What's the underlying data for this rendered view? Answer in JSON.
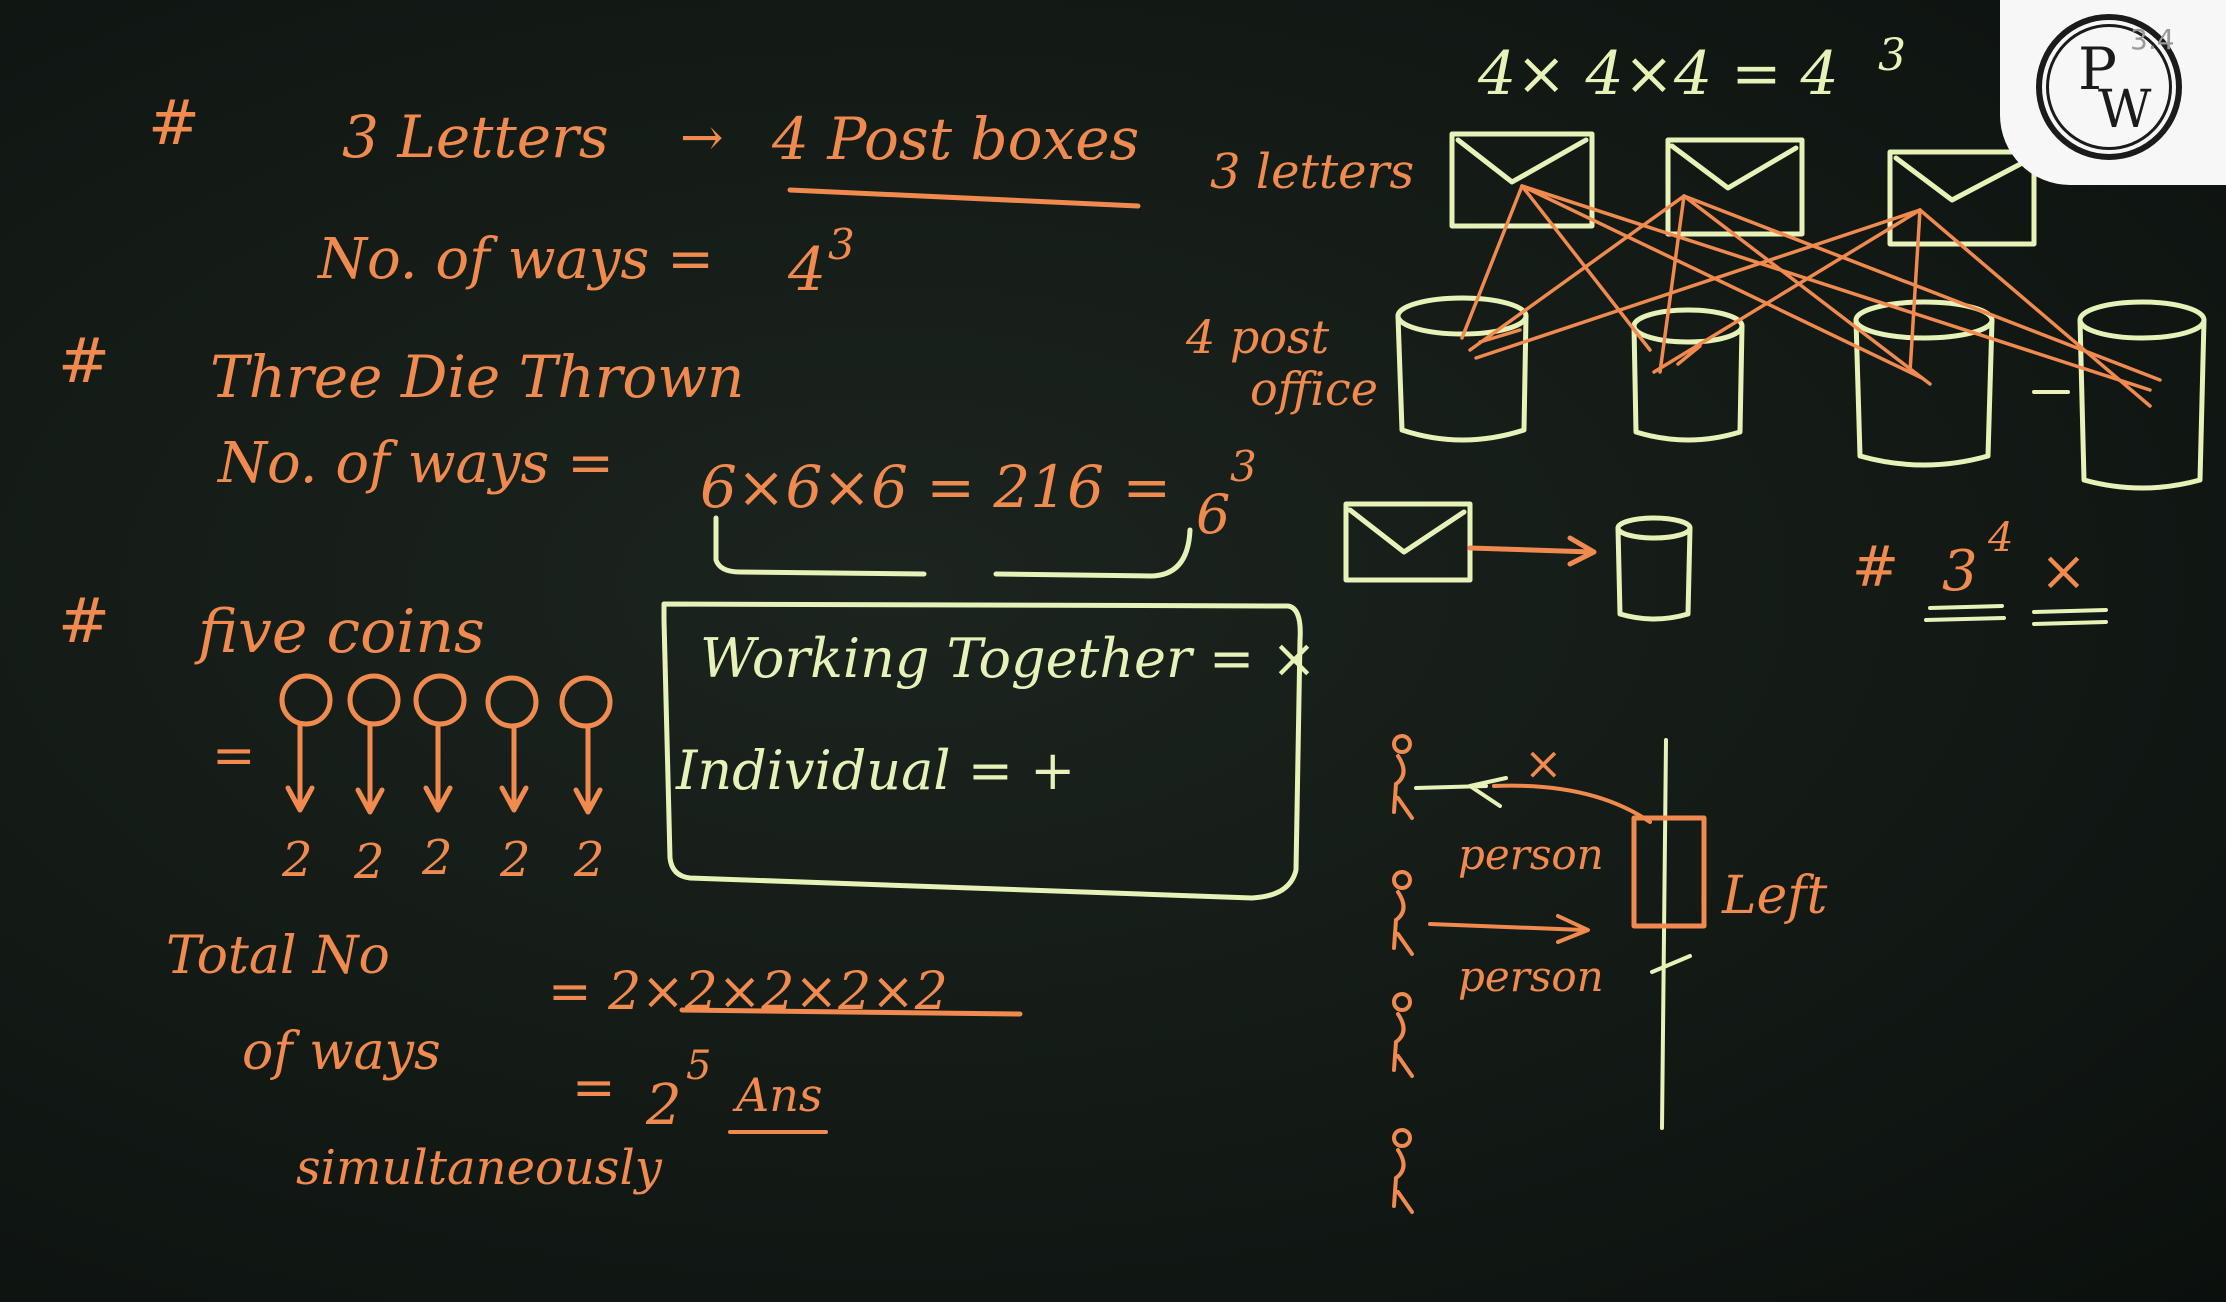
{
  "colors": {
    "board": "#131a16",
    "chalk_orange": "#f08a4e",
    "chalk_yellow": "#e7f2b8"
  },
  "left": {
    "h1_hash": "#",
    "h1_text": "3 Letters",
    "h1_arrow": "→",
    "h1_rhs": "4 Post boxes",
    "h1_ways": "No. of ways =",
    "h1_ways_val": "4",
    "h1_ways_exp": "3",
    "h2_hash": "#",
    "h2_text": "Three Die Thrown",
    "h2_ways": "No. of ways =",
    "h2_calc": "6×6×6 = 216 =",
    "h2_six": "6",
    "h2_exp": "3",
    "h3_hash": "#",
    "h3_text": "five coins",
    "h3_eq": "=",
    "coin_value": "2",
    "total_1": "Total No",
    "total_2": "of ways",
    "total_3": "simultaneously",
    "total_calc": "= 2×2×2×2×2",
    "total_ans_eq": "=",
    "total_ans_base": "2",
    "total_ans_exp": "5",
    "total_ans": "Ans"
  },
  "box": {
    "line1": "Working Together = ×",
    "line2": "Individual = +"
  },
  "right": {
    "top_eq": "4× 4×4 = 4",
    "top_exp": "3",
    "letters_label": "3 letters",
    "post_label_1": "4 post",
    "post_label_2": "office",
    "hash_note": "#",
    "hash_base": "3",
    "hash_exp": "4",
    "hash_x": "×",
    "person_1": "person",
    "person_2": "person",
    "left_label": "Left",
    "x_mark": "×"
  },
  "logo": {
    "p": "P",
    "w": "W",
    "number": "3.4"
  }
}
